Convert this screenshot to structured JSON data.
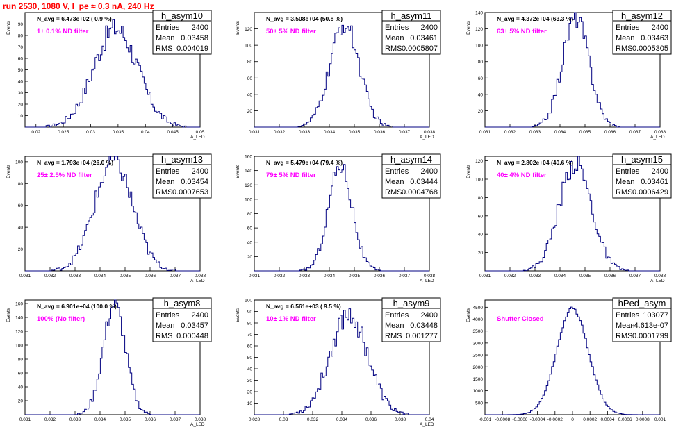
{
  "page_title": "run 2530,  1080 V, I_pe ≈ 0.3 nA, 240 Hz",
  "colors": {
    "title": "#ff0000",
    "filter_label": "#ff00ff",
    "histogram": "#000080",
    "axis": "#000000"
  },
  "stat_labels": {
    "entries": "Entries",
    "mean": "Mean",
    "rms": "RMS"
  },
  "chart_data": [
    {
      "type": "histogram",
      "name": "h_asym10",
      "entries": "2400",
      "mean": "0.03458",
      "rms": "0.004019",
      "n_avg_label": "N_avg = 6.473e+02 ( 0.9 %)",
      "filter_label": "1± 0.1% ND filter",
      "xlabel": "A_LED",
      "ylabel": "Events",
      "xlim": [
        0.018,
        0.05
      ],
      "ylim": [
        0,
        100
      ],
      "xticks": [
        0.02,
        0.025,
        0.03,
        0.035,
        0.04,
        0.045,
        0.05
      ],
      "xtick_labels": [
        "0.02",
        "0.025",
        "0.03",
        "0.035",
        "0.04",
        "0.045",
        "0.05"
      ],
      "yticks": [
        10,
        20,
        30,
        40,
        50,
        60,
        70,
        80,
        90
      ],
      "ytick_labels": [
        "10",
        "20",
        "30",
        "40",
        "50",
        "60",
        "70",
        "80",
        "90"
      ],
      "dist": {
        "mean": 0.03458,
        "sigma": 0.004019,
        "peak": 86
      }
    },
    {
      "type": "histogram",
      "name": "h_asym11",
      "entries": "2400",
      "mean": "0.03461",
      "rms": "0.0005807",
      "n_avg_label": "N_avg = 3.508e+04 (50.8 %)",
      "filter_label": "50± 5% ND filter",
      "xlabel": "A_LED",
      "ylabel": "Events",
      "xlim": [
        0.031,
        0.038
      ],
      "ylim": [
        0,
        140
      ],
      "xticks": [
        0.031,
        0.032,
        0.033,
        0.034,
        0.035,
        0.036,
        0.037,
        0.038
      ],
      "xtick_labels": [
        "0.031",
        "0.032",
        "0.033",
        "0.034",
        "0.035",
        "0.036",
        "0.037",
        "0.038"
      ],
      "yticks": [
        20,
        40,
        60,
        80,
        100,
        120
      ],
      "ytick_labels": [
        "20",
        "40",
        "60",
        "80",
        "100",
        "120"
      ],
      "dist": {
        "mean": 0.03461,
        "sigma": 0.0005807,
        "peak": 126
      }
    },
    {
      "type": "histogram",
      "name": "h_asym12",
      "entries": "2400",
      "mean": "0.03463",
      "rms": "0.0005305",
      "n_avg_label": "N_avg = 4.372e+04 (63.3 %)",
      "filter_label": "63± 5% ND filter",
      "xlabel": "A_LED",
      "ylabel": "Events",
      "xlim": [
        0.031,
        0.038
      ],
      "ylim": [
        0,
        140
      ],
      "xticks": [
        0.031,
        0.032,
        0.033,
        0.034,
        0.035,
        0.036,
        0.037,
        0.038
      ],
      "xtick_labels": [
        "0.031",
        "0.032",
        "0.033",
        "0.034",
        "0.035",
        "0.036",
        "0.037",
        "0.038"
      ],
      "yticks": [
        20,
        40,
        60,
        80,
        100,
        120,
        140
      ],
      "ytick_labels": [
        "20",
        "40",
        "60",
        "80",
        "100",
        "120",
        "140"
      ],
      "dist": {
        "mean": 0.03463,
        "sigma": 0.0005305,
        "peak": 134
      }
    },
    {
      "type": "histogram",
      "name": "h_asym13",
      "entries": "2400",
      "mean": "0.03454",
      "rms": "0.0007653",
      "n_avg_label": "N_avg = 1.793e+04 (26.0 %)",
      "filter_label": "25± 2.5% ND filter",
      "xlabel": "A_LED",
      "ylabel": "Events",
      "xlim": [
        0.031,
        0.038
      ],
      "ylim": [
        0,
        105
      ],
      "xticks": [
        0.031,
        0.032,
        0.033,
        0.034,
        0.035,
        0.036,
        0.037,
        0.038
      ],
      "xtick_labels": [
        "0.031",
        "0.032",
        "0.033",
        "0.034",
        "0.035",
        "0.036",
        "0.037",
        "0.038"
      ],
      "yticks": [
        20,
        40,
        60,
        80,
        100
      ],
      "ytick_labels": [
        "20",
        "40",
        "60",
        "80",
        "100"
      ],
      "dist": {
        "mean": 0.03454,
        "sigma": 0.0007653,
        "peak": 100
      }
    },
    {
      "type": "histogram",
      "name": "h_asym14",
      "entries": "2400",
      "mean": "0.03444",
      "rms": "0.0004768",
      "n_avg_label": "N_avg = 5.479e+04 (79.4 %)",
      "filter_label": "79± 5% ND filter",
      "xlabel": "A_LED",
      "ylabel": "Events",
      "xlim": [
        0.031,
        0.038
      ],
      "ylim": [
        0,
        160
      ],
      "xticks": [
        0.031,
        0.032,
        0.033,
        0.034,
        0.035,
        0.036,
        0.037,
        0.038
      ],
      "xtick_labels": [
        "0.031",
        "0.032",
        "0.033",
        "0.034",
        "0.035",
        "0.036",
        "0.037",
        "0.038"
      ],
      "yticks": [
        20,
        40,
        60,
        80,
        100,
        120,
        140,
        160
      ],
      "ytick_labels": [
        "20",
        "40",
        "60",
        "80",
        "100",
        "120",
        "140",
        "160"
      ],
      "dist": {
        "mean": 0.03444,
        "sigma": 0.0004768,
        "peak": 148
      }
    },
    {
      "type": "histogram",
      "name": "h_asym15",
      "entries": "2400",
      "mean": "0.03461",
      "rms": "0.0006429",
      "n_avg_label": "N_avg = 2.802e+04 (40.6 %)",
      "filter_label": "40± 4% ND filter",
      "xlabel": "A_LED",
      "ylabel": "Events",
      "xlim": [
        0.031,
        0.038
      ],
      "ylim": [
        0,
        125
      ],
      "xticks": [
        0.031,
        0.032,
        0.033,
        0.034,
        0.035,
        0.036,
        0.037,
        0.038
      ],
      "xtick_labels": [
        "0.031",
        "0.032",
        "0.033",
        "0.034",
        "0.035",
        "0.036",
        "0.037",
        "0.038"
      ],
      "yticks": [
        20,
        40,
        60,
        80,
        100,
        120
      ],
      "ytick_labels": [
        "20",
        "40",
        "60",
        "80",
        "100",
        "120"
      ],
      "dist": {
        "mean": 0.03461,
        "sigma": 0.0006429,
        "peak": 118
      }
    },
    {
      "type": "histogram",
      "name": "h_asym8",
      "entries": "2400",
      "mean": "0.03457",
      "rms": "0.000448",
      "n_avg_label": "N_avg = 6.901e+04 (100.0 %)",
      "filter_label": "100% (No filter)",
      "xlabel": "A_LED",
      "ylabel": "Events",
      "xlim": [
        0.031,
        0.038
      ],
      "ylim": [
        0,
        165
      ],
      "xticks": [
        0.031,
        0.032,
        0.033,
        0.034,
        0.035,
        0.036,
        0.037,
        0.038
      ],
      "xtick_labels": [
        "0.031",
        "0.032",
        "0.033",
        "0.034",
        "0.035",
        "0.036",
        "0.037",
        "0.038"
      ],
      "yticks": [
        20,
        40,
        60,
        80,
        100,
        120,
        140,
        160
      ],
      "ytick_labels": [
        "20",
        "40",
        "60",
        "80",
        "100",
        "120",
        "140",
        "160"
      ],
      "dist": {
        "mean": 0.03457,
        "sigma": 0.000448,
        "peak": 158
      }
    },
    {
      "type": "histogram",
      "name": "h_asym9",
      "entries": "2400",
      "mean": "0.03448",
      "rms": "0.001277",
      "n_avg_label": "N_avg = 6.561e+03 ( 9.5 %)",
      "filter_label": "10± 1% ND filter",
      "xlabel": "A_LED",
      "ylabel": "Events",
      "xlim": [
        0.028,
        0.04
      ],
      "ylim": [
        0,
        100
      ],
      "xticks": [
        0.028,
        0.03,
        0.032,
        0.034,
        0.036,
        0.038,
        0.04
      ],
      "xtick_labels": [
        "0.028",
        "0.03",
        "0.032",
        "0.034",
        "0.036",
        "0.038",
        "0.04"
      ],
      "yticks": [
        10,
        20,
        30,
        40,
        50,
        60,
        70,
        80,
        90,
        100
      ],
      "ytick_labels": [
        "10",
        "20",
        "30",
        "40",
        "50",
        "60",
        "70",
        "80",
        "90",
        "100"
      ],
      "dist": {
        "mean": 0.03448,
        "sigma": 0.001277,
        "peak": 88
      }
    },
    {
      "type": "histogram",
      "name": "hPed_asym",
      "entries": "103077",
      "mean": "-4.613e-07",
      "rms": "0.0001799",
      "n_avg_label": "",
      "filter_label": "Shutter Closed",
      "xlabel": "",
      "ylabel": "Events",
      "xlim": [
        -0.001,
        0.001
      ],
      "ylim": [
        0,
        4800
      ],
      "xticks": [
        -0.001,
        -0.0008,
        -0.0006,
        -0.0004,
        -0.0002,
        0,
        0.0002,
        0.0004,
        0.0006,
        0.0008,
        0.001
      ],
      "xtick_labels": [
        "-0.001",
        "-0.0008",
        "-0.0006",
        "-0.0004",
        "-0.0002",
        "0",
        "0.0002",
        "0.0004",
        "0.0006",
        "0.0008",
        "0.001"
      ],
      "yticks": [
        500,
        1000,
        1500,
        2000,
        2500,
        3000,
        3500,
        4000,
        4500
      ],
      "ytick_labels": [
        "500",
        "1000",
        "1500",
        "2000",
        "2500",
        "3000",
        "3500",
        "4000",
        "4500"
      ],
      "dist": {
        "mean": 0.0,
        "sigma": 0.0001799,
        "peak": 4450
      }
    }
  ]
}
